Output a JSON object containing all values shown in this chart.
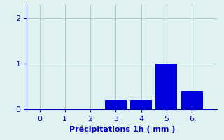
{
  "categories": [
    3,
    4,
    5,
    6
  ],
  "values": [
    0.2,
    0.2,
    1.0,
    0.4
  ],
  "bar_color": "#0000dd",
  "background_color": "#dff2ef",
  "grid_color": "#aacccc",
  "axis_color": "#0000aa",
  "xlabel": "Précipitations 1h ( mm )",
  "xlim": [
    -0.5,
    7.0
  ],
  "ylim": [
    0,
    2.3
  ],
  "yticks": [
    0,
    1,
    2
  ],
  "xticks": [
    0,
    1,
    2,
    3,
    4,
    5,
    6
  ],
  "bar_width": 0.85,
  "tick_color": "#0000cc",
  "label_fontsize": 8,
  "tick_fontsize": 8
}
